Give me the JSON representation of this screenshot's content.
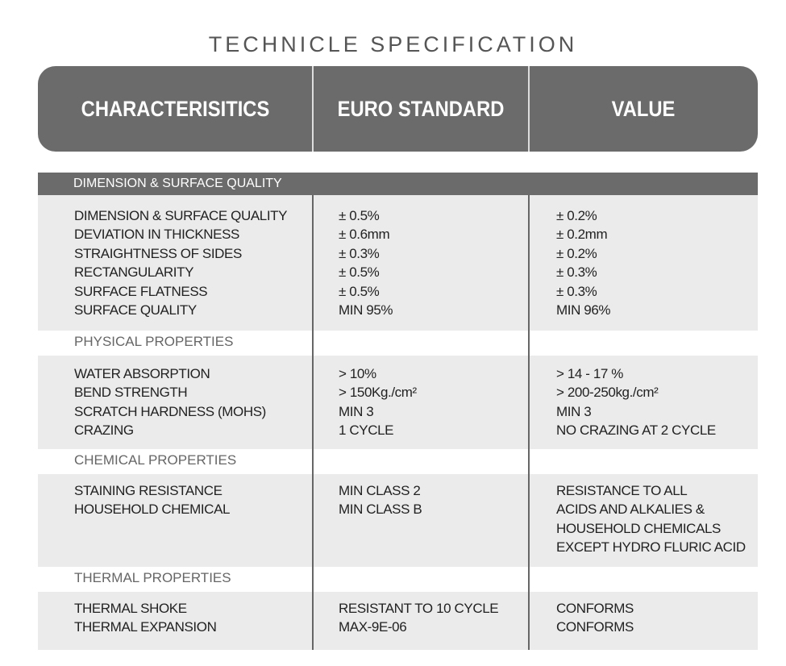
{
  "title": "TECHNICLE SPECIFICATION",
  "header": [
    "CHARACTERISITICS",
    "EURO STANDARD",
    "VALUE"
  ],
  "sections": [
    {
      "label": "DIMENSION & SURFACE QUALITY",
      "rows": [
        [
          "DIMENSION & SURFACE QUALITY",
          "± 0.5%",
          "± 0.2%"
        ],
        [
          "DEVIATION IN THICKNESS",
          "± 0.6mm",
          "± 0.2mm"
        ],
        [
          "STRAIGHTNESS OF SIDES",
          "± 0.3%",
          "± 0.2%"
        ],
        [
          "RECTANGULARITY",
          "± 0.5%",
          "± 0.3%"
        ],
        [
          "SURFACE FLATNESS",
          "± 0.5%",
          "± 0.3%"
        ],
        [
          "SURFACE QUALITY",
          "MIN 95%",
          "MIN 96%"
        ]
      ]
    },
    {
      "label": "PHYSICAL PROPERTIES",
      "rows": [
        [
          "WATER ABSORPTION",
          "> 10%",
          "> 14 - 17 %"
        ],
        [
          "BEND STRENGTH",
          "> 150Kg./cm²",
          "> 200-250kg./cm²"
        ],
        [
          "SCRATCH HARDNESS (MOHS)",
          "MIN 3",
          "MIN 3"
        ],
        [
          "CRAZING",
          "1 CYCLE",
          "NO CRAZING AT 2 CYCLE"
        ]
      ]
    },
    {
      "label": "CHEMICAL PROPERTIES",
      "rows": [
        [
          "STAINING RESISTANCE",
          "MIN CLASS 2",
          "RESISTANCE TO ALL"
        ],
        [
          "HOUSEHOLD CHEMICAL",
          "MIN CLASS B",
          "ACIDS AND ALKALIES &"
        ],
        [
          "",
          "",
          "HOUSEHOLD CHEMICALS"
        ],
        [
          "",
          "",
          "EXCEPT HYDRO FLURIC ACID"
        ]
      ]
    },
    {
      "label": "THERMAL PROPERTIES",
      "rows": [
        [
          "THERMAL SHOKE",
          "RESISTANT TO 10 CYCLE",
          "CONFORMS"
        ],
        [
          "THERMAL EXPANSION",
          "MAX-9E-06",
          "CONFORMS"
        ]
      ]
    }
  ]
}
